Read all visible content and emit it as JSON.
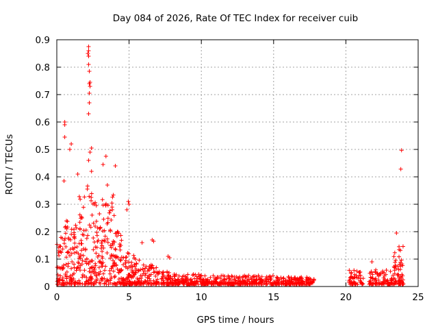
{
  "chart_data": {
    "type": "scatter",
    "title": "Day 084 of 2026, Rate Of TEC Index for receiver cuib",
    "xlabel": "GPS time / hours",
    "ylabel": "ROTI / TECUs",
    "xlim": [
      0,
      25
    ],
    "ylim": [
      0,
      0.9
    ],
    "xticks": [
      0,
      5,
      10,
      15,
      20,
      25
    ],
    "yticks": [
      0,
      0.1,
      0.2,
      0.3,
      0.4,
      0.5,
      0.6,
      0.7,
      0.8,
      0.9
    ],
    "grid": true,
    "marker": "+",
    "colors": {
      "points": "#ff0000",
      "grid": "#a0a0a0",
      "axes": "#000000"
    },
    "series": [
      {
        "name": "ROTI",
        "points": [
          [
            2.2,
            0.875
          ],
          [
            2.2,
            0.86
          ],
          [
            2.15,
            0.85
          ],
          [
            2.2,
            0.84
          ],
          [
            2.2,
            0.81
          ],
          [
            2.25,
            0.785
          ],
          [
            2.3,
            0.745
          ],
          [
            2.25,
            0.74
          ],
          [
            2.3,
            0.73
          ],
          [
            2.25,
            0.705
          ],
          [
            2.25,
            0.67
          ],
          [
            2.2,
            0.63
          ],
          [
            0.55,
            0.6
          ],
          [
            0.55,
            0.59
          ],
          [
            0.55,
            0.545
          ],
          [
            1.0,
            0.52
          ],
          [
            0.9,
            0.5
          ],
          [
            2.4,
            0.505
          ],
          [
            2.3,
            0.49
          ],
          [
            3.4,
            0.475
          ],
          [
            2.2,
            0.46
          ],
          [
            3.2,
            0.445
          ],
          [
            4.05,
            0.44
          ],
          [
            2.4,
            0.42
          ],
          [
            1.45,
            0.41
          ],
          [
            0.5,
            0.385
          ],
          [
            3.5,
            0.37
          ],
          [
            23.85,
            0.497
          ],
          [
            23.8,
            0.428
          ],
          [
            23.5,
            0.195
          ],
          [
            4.95,
            0.31
          ],
          [
            5.0,
            0.3
          ],
          [
            4.85,
            0.28
          ],
          [
            6.6,
            0.17
          ],
          [
            6.7,
            0.165
          ],
          [
            7.7,
            0.11
          ],
          [
            7.8,
            0.105
          ],
          [
            5.9,
            0.16
          ],
          [
            4.2,
            0.2
          ],
          [
            21.8,
            0.09
          ]
        ]
      }
    ],
    "bands": [
      {
        "x0": 0.0,
        "x1": 0.5,
        "top": 0.18
      },
      {
        "x0": 0.5,
        "x1": 1.0,
        "top": 0.26
      },
      {
        "x0": 1.0,
        "x1": 1.5,
        "top": 0.3
      },
      {
        "x0": 1.5,
        "x1": 2.0,
        "top": 0.36
      },
      {
        "x0": 2.0,
        "x1": 2.5,
        "top": 0.42
      },
      {
        "x0": 2.5,
        "x1": 3.0,
        "top": 0.32
      },
      {
        "x0": 3.0,
        "x1": 3.5,
        "top": 0.36
      },
      {
        "x0": 3.5,
        "x1": 4.0,
        "top": 0.34
      },
      {
        "x0": 4.0,
        "x1": 4.5,
        "top": 0.2
      },
      {
        "x0": 4.5,
        "x1": 5.0,
        "top": 0.14
      },
      {
        "x0": 5.0,
        "x1": 5.5,
        "top": 0.12
      },
      {
        "x0": 5.5,
        "x1": 6.0,
        "top": 0.1
      },
      {
        "x0": 6.0,
        "x1": 6.5,
        "top": 0.08
      },
      {
        "x0": 6.5,
        "x1": 7.0,
        "top": 0.08
      },
      {
        "x0": 7.0,
        "x1": 8.0,
        "top": 0.06
      },
      {
        "x0": 8.0,
        "x1": 10.0,
        "top": 0.045
      },
      {
        "x0": 10.0,
        "x1": 12.0,
        "top": 0.04
      },
      {
        "x0": 12.0,
        "x1": 15.0,
        "top": 0.04
      },
      {
        "x0": 15.0,
        "x1": 17.8,
        "top": 0.035
      },
      {
        "x0": 20.2,
        "x1": 21.2,
        "top": 0.06
      },
      {
        "x0": 21.6,
        "x1": 22.5,
        "top": 0.07
      },
      {
        "x0": 22.5,
        "x1": 23.3,
        "top": 0.06
      },
      {
        "x0": 23.3,
        "x1": 24.0,
        "top": 0.16
      }
    ]
  }
}
